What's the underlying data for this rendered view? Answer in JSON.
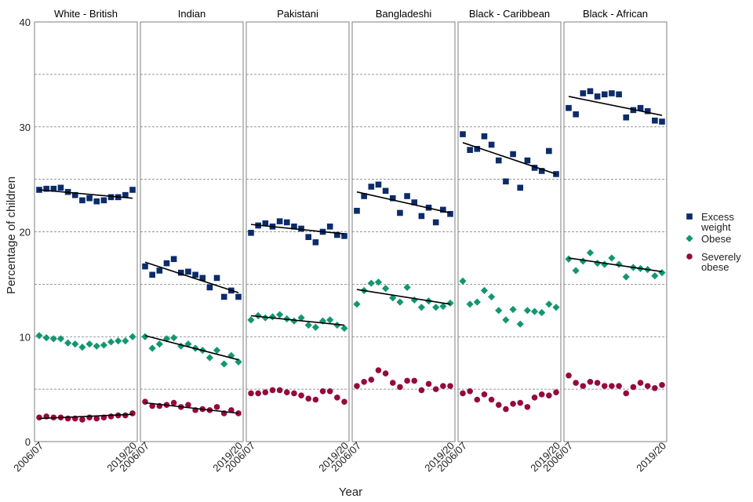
{
  "chart_data": {
    "type": "scatter",
    "xlabel": "Year",
    "ylabel": "Percentage of children",
    "ylim": [
      0,
      40
    ],
    "y_ticks": [
      "0",
      "10",
      "20",
      "30",
      "40"
    ],
    "x_tick_labels": [
      "2006/07",
      "2019/20"
    ],
    "x": [
      "2006/07",
      "2007/08",
      "2008/09",
      "2009/10",
      "2010/11",
      "2011/12",
      "2012/13",
      "2013/14",
      "2014/15",
      "2015/16",
      "2016/17",
      "2017/18",
      "2018/19",
      "2019/20"
    ],
    "legend": [
      {
        "key": "excess",
        "label_lines": [
          "Excess",
          "weight"
        ],
        "color": "#0b2b6b",
        "shape": "square"
      },
      {
        "key": "obese",
        "label_lines": [
          "Obese"
        ],
        "color": "#119770",
        "shape": "diamond"
      },
      {
        "key": "severe",
        "label_lines": [
          "Severely",
          "obese"
        ],
        "color": "#950a3d",
        "shape": "circle"
      }
    ],
    "panels": [
      {
        "title": "White - British",
        "series": {
          "excess": [
            24.0,
            24.1,
            24.1,
            24.2,
            23.8,
            23.5,
            23.0,
            23.2,
            22.9,
            23.0,
            23.3,
            23.3,
            23.5,
            24.0
          ],
          "obese": [
            10.1,
            9.9,
            9.8,
            9.8,
            9.4,
            9.3,
            9.0,
            9.3,
            9.1,
            9.2,
            9.5,
            9.6,
            9.6,
            10.0
          ],
          "severe": [
            2.3,
            2.4,
            2.3,
            2.3,
            2.2,
            2.2,
            2.1,
            2.3,
            2.2,
            2.3,
            2.4,
            2.5,
            2.5,
            2.7
          ]
        },
        "trend": {
          "excess": [
            24.0,
            23.2
          ],
          "severe": [
            2.2,
            2.6
          ]
        }
      },
      {
        "title": "Indian",
        "series": {
          "excess": [
            16.7,
            15.9,
            16.3,
            17.0,
            17.4,
            16.1,
            16.2,
            15.9,
            15.6,
            14.7,
            15.6,
            13.8,
            14.4,
            13.8
          ],
          "obese": [
            10.0,
            8.9,
            9.3,
            9.8,
            9.9,
            9.1,
            9.3,
            8.9,
            8.7,
            8.0,
            8.7,
            7.4,
            8.2,
            7.6
          ],
          "severe": [
            3.8,
            3.4,
            3.4,
            3.5,
            3.7,
            3.3,
            3.5,
            3.0,
            3.1,
            3.0,
            3.3,
            2.7,
            3.0,
            2.7
          ]
        },
        "trend": {
          "excess": [
            17.1,
            14.2
          ],
          "obese": [
            10.1,
            7.8
          ],
          "severe": [
            3.7,
            2.7
          ]
        }
      },
      {
        "title": "Pakistani",
        "series": {
          "excess": [
            19.9,
            20.6,
            20.8,
            20.5,
            21.0,
            20.9,
            20.5,
            20.3,
            19.5,
            19.0,
            20.0,
            20.5,
            19.7,
            19.6
          ],
          "obese": [
            11.6,
            12.0,
            11.8,
            11.9,
            12.1,
            11.7,
            11.5,
            11.8,
            11.1,
            10.9,
            11.5,
            11.6,
            11.1,
            10.8
          ],
          "severe": [
            4.6,
            4.6,
            4.7,
            4.9,
            4.9,
            4.7,
            4.6,
            4.4,
            4.1,
            4.0,
            4.8,
            4.8,
            4.2,
            3.8
          ]
        },
        "trend": {
          "excess": [
            20.7,
            19.8
          ],
          "obese": [
            12.0,
            11.1
          ]
        }
      },
      {
        "title": "Bangladeshi",
        "series": {
          "excess": [
            22.0,
            23.4,
            24.3,
            24.5,
            23.9,
            23.2,
            21.8,
            23.4,
            22.8,
            21.5,
            22.3,
            20.9,
            22.1,
            21.7
          ],
          "obese": [
            13.1,
            14.4,
            15.1,
            15.2,
            14.6,
            13.7,
            13.3,
            14.7,
            13.5,
            12.8,
            13.4,
            12.8,
            12.9,
            13.2
          ],
          "severe": [
            5.3,
            5.7,
            5.9,
            6.8,
            6.5,
            5.6,
            5.2,
            5.8,
            5.8,
            4.9,
            5.5,
            5.0,
            5.3,
            5.3
          ]
        },
        "trend": {
          "excess": [
            23.8,
            21.8
          ],
          "obese": [
            14.5,
            13.1
          ]
        }
      },
      {
        "title": "Black - Caribbean",
        "series": {
          "excess": [
            29.3,
            27.8,
            27.9,
            29.1,
            28.3,
            26.8,
            24.8,
            27.4,
            24.2,
            26.8,
            26.1,
            25.8,
            27.7,
            25.5
          ],
          "obese": [
            15.3,
            13.1,
            13.3,
            14.4,
            13.8,
            12.5,
            11.6,
            12.6,
            11.2,
            12.5,
            12.4,
            12.3,
            13.1,
            12.8
          ],
          "severe": [
            4.6,
            4.8,
            4.0,
            4.5,
            4.0,
            3.5,
            3.1,
            3.6,
            3.7,
            3.3,
            4.2,
            4.5,
            4.4,
            4.7
          ]
        },
        "trend": {
          "excess": [
            28.5,
            25.5
          ]
        }
      },
      {
        "title": "Black - African",
        "series": {
          "excess": [
            31.8,
            31.2,
            33.2,
            33.4,
            32.9,
            33.1,
            33.2,
            33.1,
            30.9,
            31.6,
            31.8,
            31.5,
            30.6,
            30.5
          ],
          "obese": [
            17.4,
            16.3,
            17.2,
            18.0,
            17.0,
            16.9,
            17.5,
            16.9,
            15.7,
            16.6,
            16.5,
            16.4,
            15.8,
            16.1
          ],
          "severe": [
            6.3,
            5.6,
            5.3,
            5.7,
            5.6,
            5.3,
            5.3,
            5.3,
            4.6,
            5.2,
            5.6,
            5.3,
            5.1,
            5.4
          ]
        },
        "trend": {
          "excess": [
            32.9,
            31.1
          ],
          "obese": [
            17.5,
            16.2
          ]
        }
      }
    ]
  }
}
